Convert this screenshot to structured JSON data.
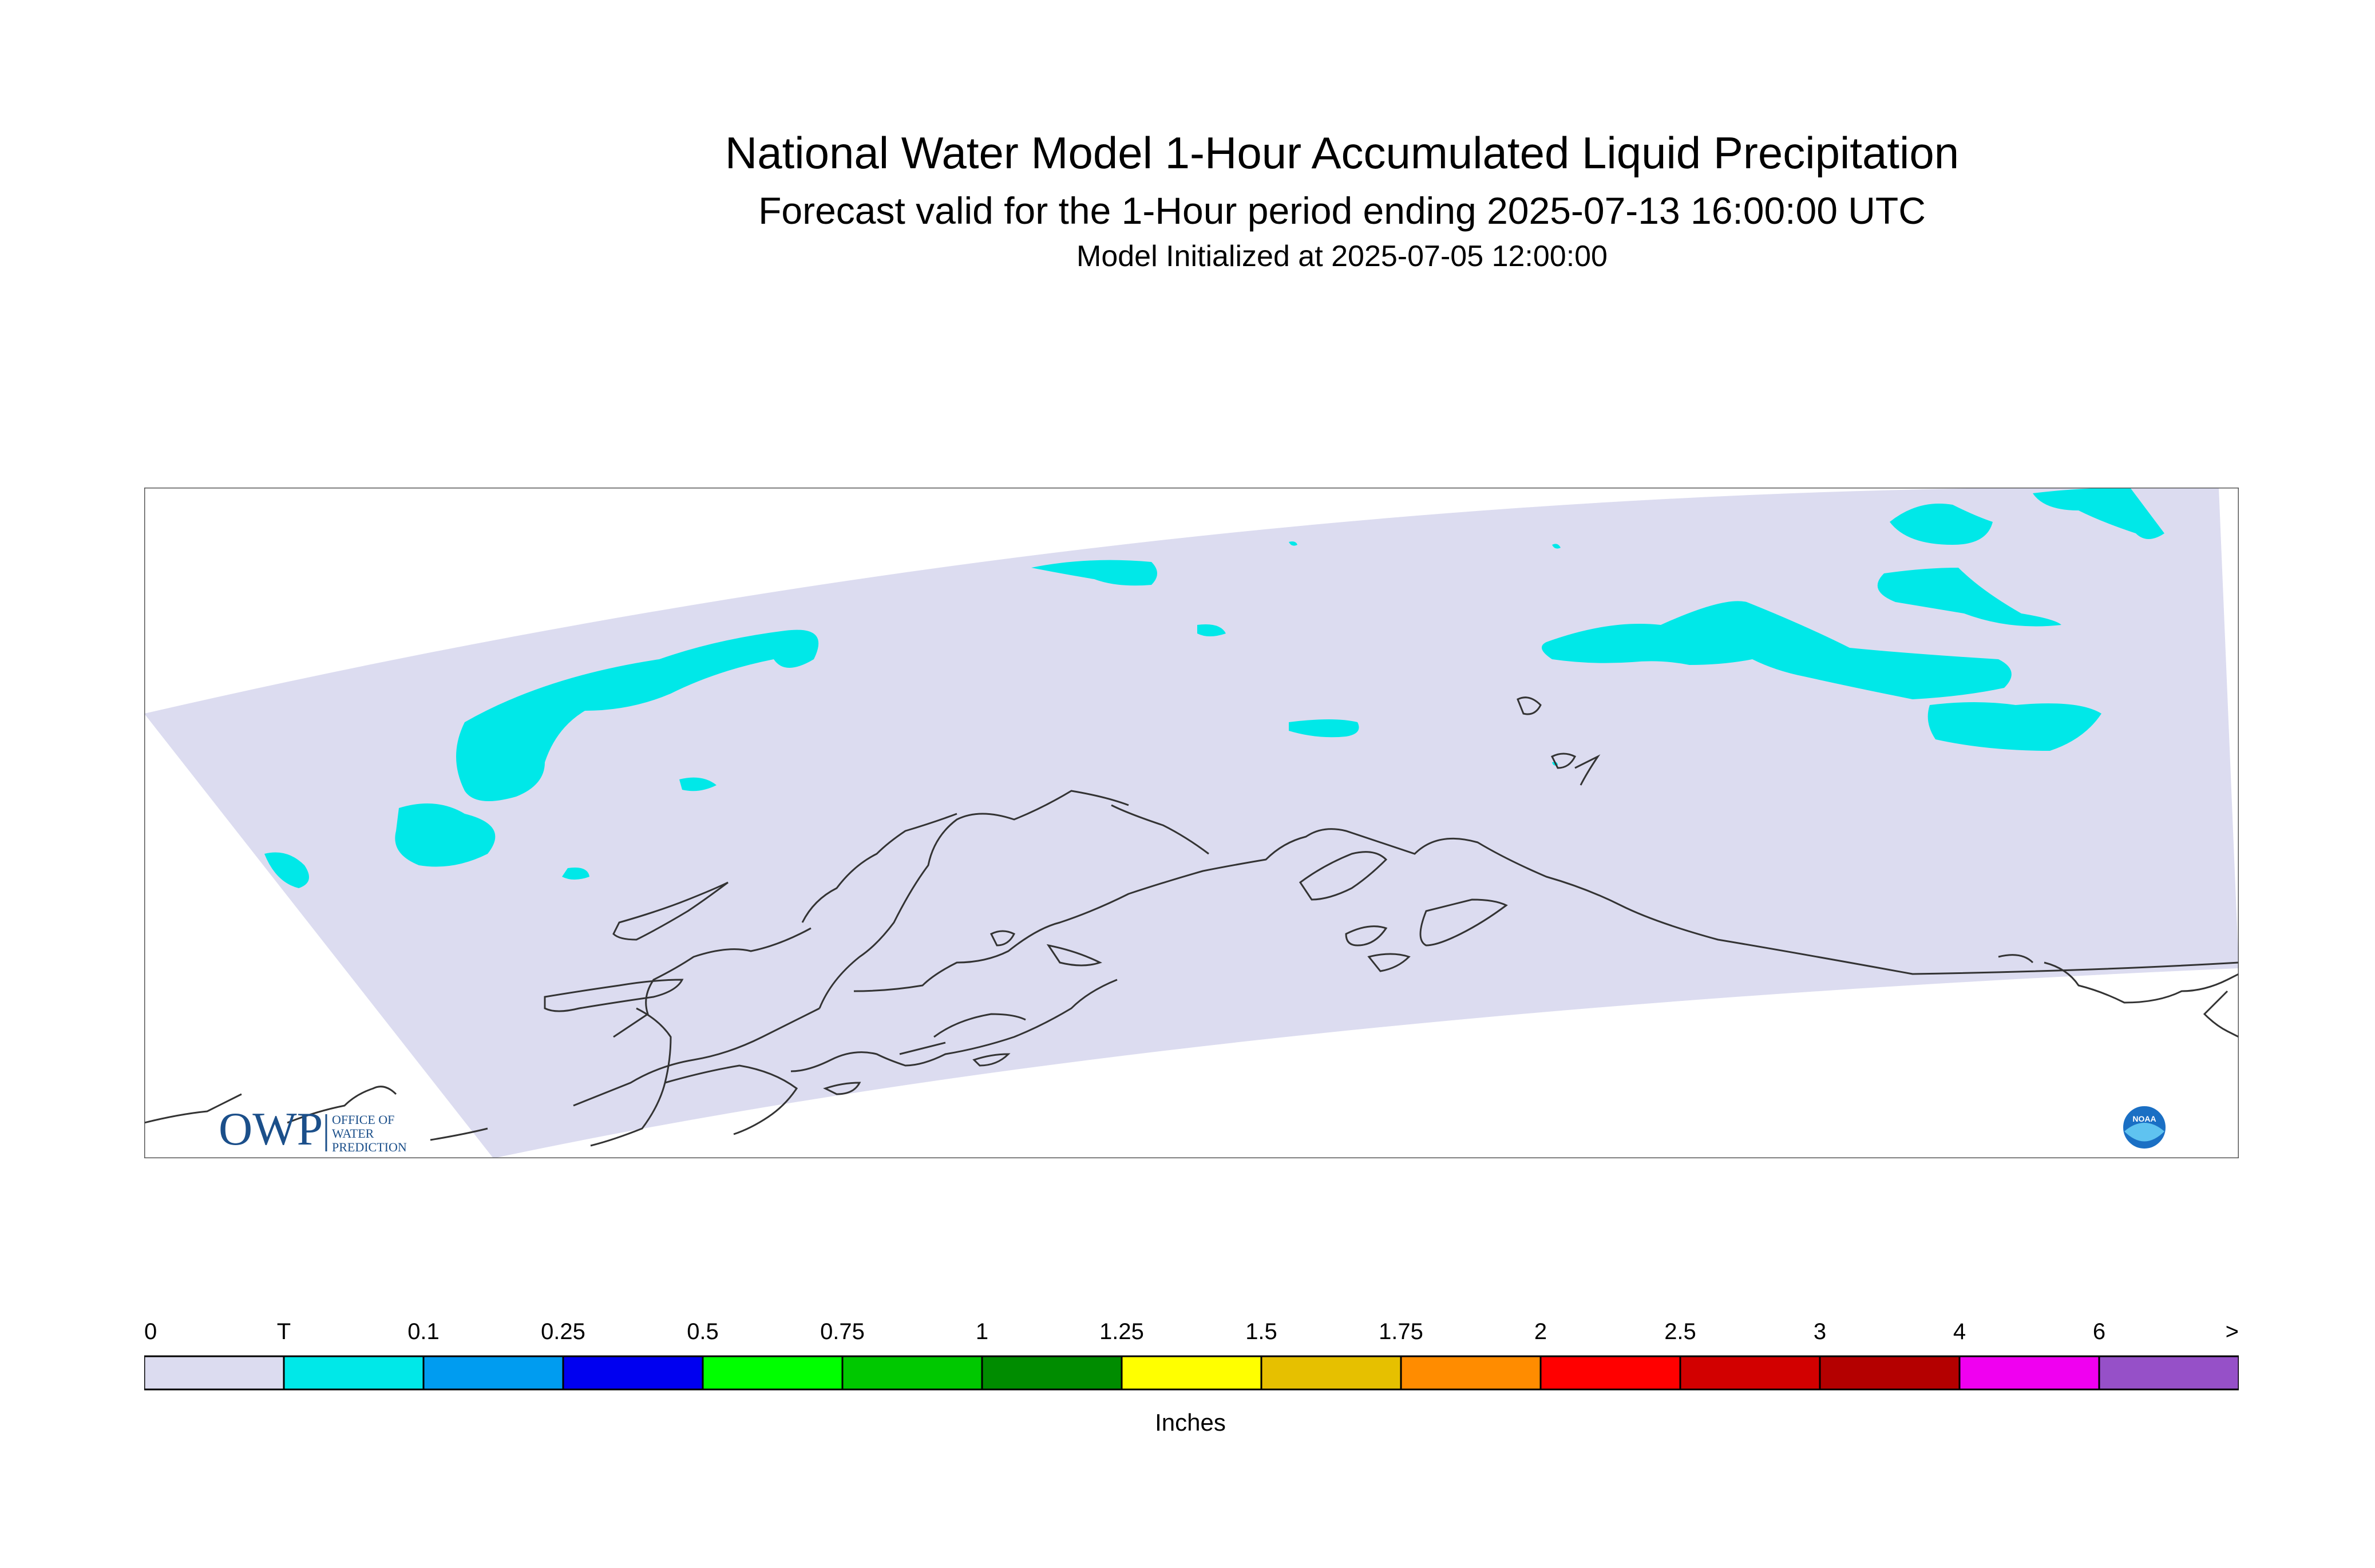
{
  "header": {
    "title": "National Water Model 1-Hour Accumulated Liquid Precipitation",
    "subtitle": "Forecast valid for the 1-Hour period ending 2025-07-13 16:00:00 UTC",
    "init_line": "Model Initialized at 2025-07-05 12:00:00"
  },
  "map": {
    "domain_color": "#dcdcf0",
    "trace_color": "#00e8e8",
    "coast_color": "#333333"
  },
  "logos": {
    "owp": {
      "mark": "OWP",
      "line1": "OFFICE OF",
      "line2": "WATER",
      "line3": "PREDICTION",
      "color": "#1b4f8a"
    },
    "noaa": {
      "mark": "NOAA",
      "color": "#1a6fc4"
    }
  },
  "legend": {
    "units": "Inches",
    "labels": [
      "0",
      "T",
      "0.1",
      "0.25",
      "0.5",
      "0.75",
      "1",
      "1.25",
      "1.5",
      "1.75",
      "2",
      "2.5",
      "3",
      "4",
      "6",
      ">"
    ],
    "colors": [
      "#dcdcf0",
      "#00e8e8",
      "#009cf0",
      "#0000f0",
      "#00ff00",
      "#00c800",
      "#008c00",
      "#ffff00",
      "#e6c000",
      "#ff8c00",
      "#ff0000",
      "#d20000",
      "#b40000",
      "#f000f0",
      "#9650c8"
    ]
  }
}
